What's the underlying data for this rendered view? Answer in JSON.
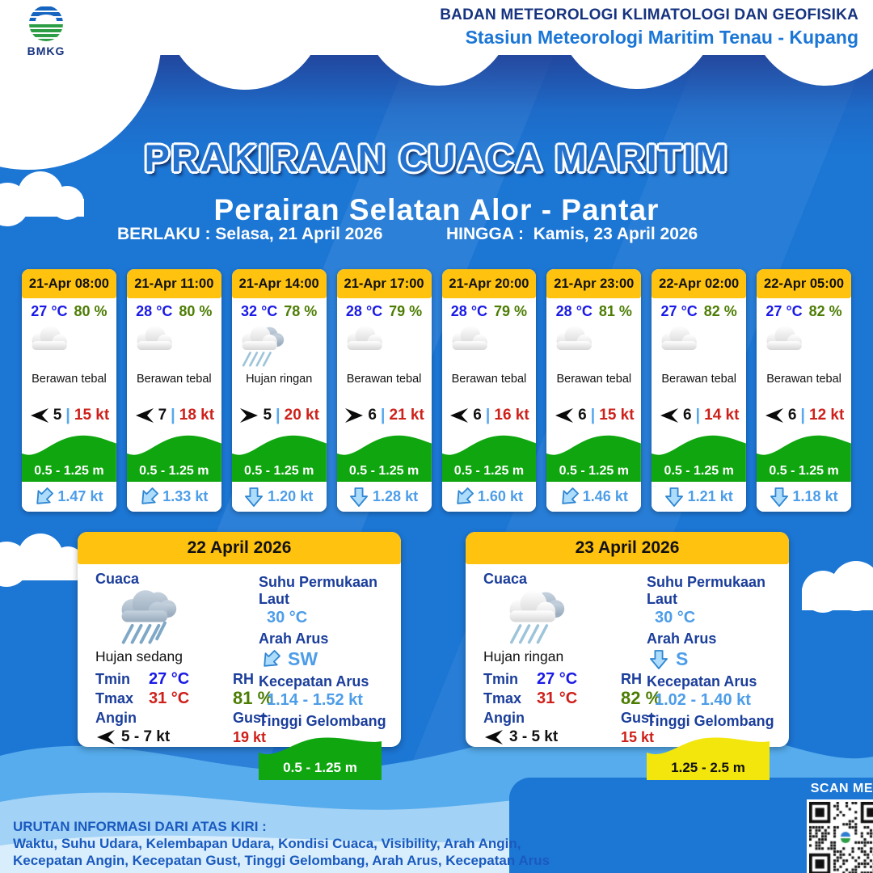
{
  "org": {
    "logo": "BMKG",
    "line1": "BADAN METEOROLOGI KLIMATOLOGI DAN GEOFISIKA",
    "line2": "Stasiun Meteorologi Maritim Tenau - Kupang"
  },
  "title": {
    "main": "PRAKIRAAN CUACA MARITIM",
    "area": "Perairan Selatan Alor - Pantar",
    "valid_from_label": "BERLAKU :",
    "valid_from": "Selasa, 21 April 2026",
    "valid_to_label": "HINGGA :",
    "valid_to": "Kamis, 23 April 2026"
  },
  "labels": {
    "cuaca": "Cuaca",
    "tmin": "Tmin",
    "tmax": "Tmax",
    "angin": "Angin",
    "rh": "RH",
    "gust": "Gust",
    "sst": "Suhu Permukaan Laut",
    "arah_arus": "Arah Arus",
    "kecepatan_arus": "Kecepatan Arus",
    "tinggi_gelombang": "Tinggi Gelombang"
  },
  "hourly": [
    {
      "time": "21-Apr 08:00",
      "temp": "27 °C",
      "humidity": "80 %",
      "condition": "Berawan tebal",
      "icon": "cloudy",
      "visibility": "5",
      "wind_arrow": "wind-left",
      "wind_speed": "15 kt",
      "wave_height": "0.5 - 1.25 m",
      "wave_level": "green",
      "current_arrow": "dir-sw",
      "current_speed": "1.47 kt"
    },
    {
      "time": "21-Apr 11:00",
      "temp": "28 °C",
      "humidity": "80 %",
      "condition": "Berawan tebal",
      "icon": "cloudy",
      "visibility": "7",
      "wind_arrow": "wind-left",
      "wind_speed": "18 kt",
      "wave_height": "0.5 - 1.25 m",
      "wave_level": "green",
      "current_arrow": "dir-sw",
      "current_speed": "1.33 kt"
    },
    {
      "time": "21-Apr 14:00",
      "temp": "32 °C",
      "humidity": "78 %",
      "condition": "Hujan ringan",
      "icon": "rain-light",
      "visibility": "5",
      "wind_arrow": "wind-right",
      "wind_speed": "20 kt",
      "wave_height": "0.5 - 1.25 m",
      "wave_level": "green",
      "current_arrow": "dir-s",
      "current_speed": "1.20 kt"
    },
    {
      "time": "21-Apr 17:00",
      "temp": "28 °C",
      "humidity": "79 %",
      "condition": "Berawan tebal",
      "icon": "cloudy",
      "visibility": "6",
      "wind_arrow": "wind-right",
      "wind_speed": "21 kt",
      "wave_height": "0.5 - 1.25 m",
      "wave_level": "green",
      "current_arrow": "dir-s",
      "current_speed": "1.28 kt"
    },
    {
      "time": "21-Apr 20:00",
      "temp": "28 °C",
      "humidity": "79 %",
      "condition": "Berawan tebal",
      "icon": "cloudy",
      "visibility": "6",
      "wind_arrow": "wind-left",
      "wind_speed": "16 kt",
      "wave_height": "0.5 - 1.25 m",
      "wave_level": "green",
      "current_arrow": "dir-sw",
      "current_speed": "1.60 kt"
    },
    {
      "time": "21-Apr 23:00",
      "temp": "28 °C",
      "humidity": "81 %",
      "condition": "Berawan tebal",
      "icon": "cloudy",
      "visibility": "6",
      "wind_arrow": "wind-left",
      "wind_speed": "15 kt",
      "wave_height": "0.5 - 1.25 m",
      "wave_level": "green",
      "current_arrow": "dir-sw",
      "current_speed": "1.46 kt"
    },
    {
      "time": "22-Apr 02:00",
      "temp": "27 °C",
      "humidity": "82 %",
      "condition": "Berawan tebal",
      "icon": "cloudy",
      "visibility": "6",
      "wind_arrow": "wind-left",
      "wind_speed": "14 kt",
      "wave_height": "0.5 - 1.25 m",
      "wave_level": "green",
      "current_arrow": "dir-s",
      "current_speed": "1.21 kt"
    },
    {
      "time": "22-Apr 05:00",
      "temp": "27 °C",
      "humidity": "82 %",
      "condition": "Berawan tebal",
      "icon": "cloudy",
      "visibility": "6",
      "wind_arrow": "wind-left",
      "wind_speed": "12 kt",
      "wave_height": "0.5 - 1.25 m",
      "wave_level": "green",
      "current_arrow": "dir-s",
      "current_speed": "1.18 kt"
    }
  ],
  "daily": [
    {
      "date": "22 April 2026",
      "condition": "Hujan sedang",
      "icon": "rain-medium",
      "tmin": "27 °C",
      "tmax": "31 °C",
      "rh": "81 %",
      "wind_range": "5 - 7 kt",
      "wind_arrow": "wind-left",
      "gust": "19 kt",
      "sst": "30 °C",
      "current_arrow": "dir-sw",
      "current_dir": "SW",
      "current_speed": "1.14 - 1.52 kt",
      "wave_height": "0.5 - 1.25 m",
      "wave_level": "green"
    },
    {
      "date": "23 April 2026",
      "condition": "Hujan ringan",
      "icon": "rain-light",
      "tmin": "27 °C",
      "tmax": "31 °C",
      "rh": "82 %",
      "wind_range": "3 - 5 kt",
      "wind_arrow": "wind-left",
      "gust": "15 kt",
      "sst": "30 °C",
      "current_arrow": "dir-s",
      "current_dir": "S",
      "current_speed": "1.02 - 1.40 kt",
      "wave_height": "1.25 - 2.5 m",
      "wave_level": "yellow"
    }
  ],
  "footer": {
    "line1": "URUTAN INFORMASI DARI ATAS KIRI :",
    "line2": "Waktu, Suhu Udara, Kelembapan Udara, Kondisi Cuaca, Visibility, Arah Angin,",
    "line3": "Kecepatan Angin, Kecepatan Gust, Tinggi Gelombang, Arah Arus, Kecepatan Arus"
  },
  "qr": {
    "caption": "SCAN ME"
  },
  "colors": {
    "primary_blue": "#1C76D4",
    "scallop_navy": "#233E94",
    "accent_yellow": "#FFC20E",
    "wave_green": "#0FA60F",
    "wave_warning_yellow": "#F2E60D",
    "temp_blue": "#1A1AE6",
    "humidity_green": "#4C7D03",
    "speed_red": "#CE201A",
    "current_blue": "#4D9DE8",
    "label_navy": "#1B3E9B",
    "footer_blue": "#1A5ABF"
  }
}
